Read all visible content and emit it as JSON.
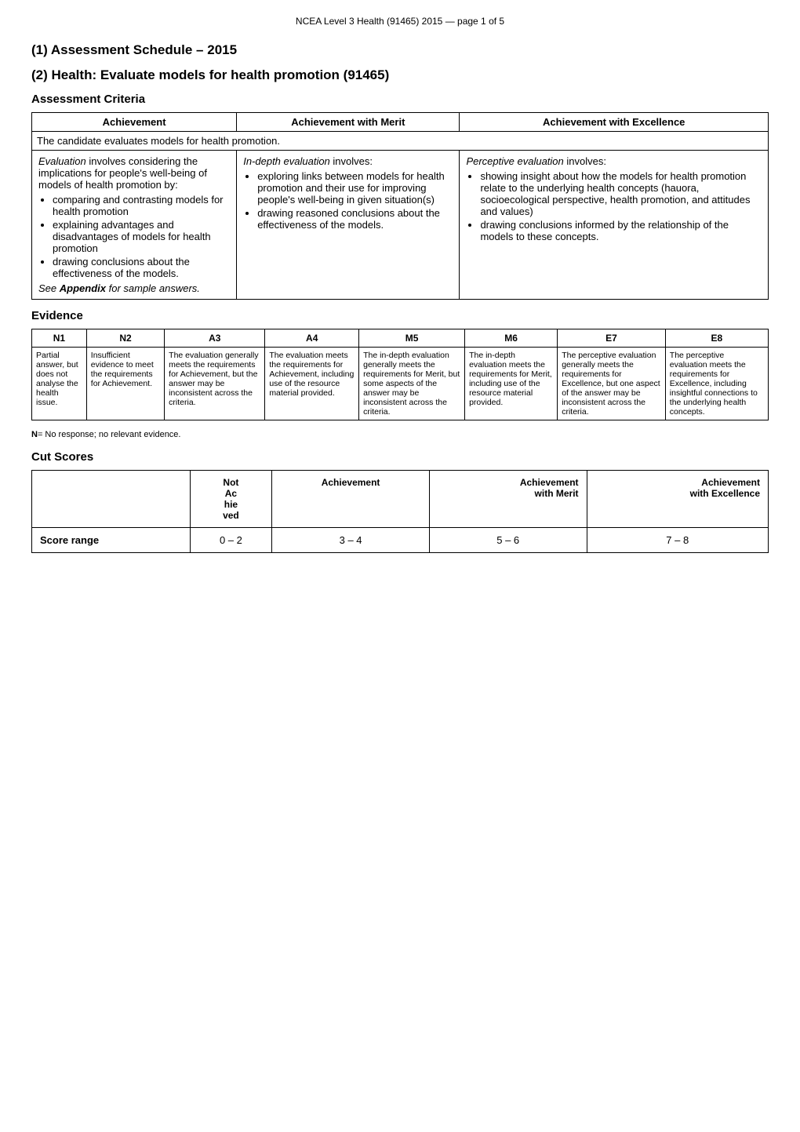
{
  "header": {
    "text": "NCEA Level 3 Health (91465) 2015 — page 1 of 5"
  },
  "section1": {
    "title": "(1) Assessment Schedule – 2015"
  },
  "section2": {
    "title": "(2) Health: Evaluate models for health promotion (91465)"
  },
  "criteria": {
    "heading": "Assessment Criteria",
    "columns": [
      "Achievement",
      "Achievement with Merit",
      "Achievement with Excellence"
    ],
    "spanning_row": "The candidate evaluates models for health promotion.",
    "col1": {
      "intro_italic": "Evaluation",
      "intro_text": " involves considering the implications for people's well-being of models of health promotion by:",
      "bullets": [
        "comparing and contrasting models for health promotion",
        "explaining advantages and disadvantages of models for health promotion",
        "drawing conclusions about the effectiveness of the models."
      ],
      "footer_italic": "See ",
      "footer_bold": "Appendix",
      "footer_rest": " for sample answers."
    },
    "col2": {
      "intro_italic": "In-depth evaluation",
      "intro_text": " involves:",
      "bullets": [
        "exploring links between models for health promotion and their use for improving people's well-being in given situation(s)",
        "drawing reasoned conclusions about the effectiveness of the models."
      ]
    },
    "col3": {
      "intro_italic": "Perceptive evaluation",
      "intro_text": " involves:",
      "bullets": [
        "showing insight about how the models for health promotion relate to the underlying health concepts (hauora, socioecological perspective, health promotion, and attitudes and values)",
        "drawing conclusions informed by the relationship of the models to these concepts."
      ]
    }
  },
  "evidence": {
    "heading": "Evidence",
    "columns": [
      "N1",
      "N2",
      "A3",
      "A4",
      "M5",
      "M6",
      "E7",
      "E8"
    ],
    "cells": [
      "Partial answer, but does not analyse the health issue.",
      "Insufficient evidence to meet the requirements for Achievement.",
      "The evaluation generally meets the requirements for Achievement, but the answer may be inconsistent across the criteria.",
      "The evaluation meets the requirements for Achievement, including use of the resource material provided.",
      "The in-depth evaluation generally meets the requirements for Merit, but some aspects of the answer may be inconsistent across the criteria.",
      "The in-depth evaluation meets the requirements for Merit, including use of the resource material provided.",
      "The perceptive evaluation generally meets the requirements for Excellence, but one aspect of the answer may be inconsistent across the criteria.",
      "The perceptive evaluation meets the requirements for Excellence, including insightful connections to the underlying health concepts."
    ],
    "note_bold": "N",
    "note_text": "= No response; no relevant evidence."
  },
  "cutscores": {
    "heading": "Cut Scores",
    "columns": [
      "Not Achieved",
      "Achievement",
      "Achievement with Merit",
      "Achievement with Excellence"
    ],
    "row_label": "Score range",
    "values": [
      "0 – 2",
      "3 – 4",
      "5 – 6",
      "7 – 8"
    ]
  }
}
